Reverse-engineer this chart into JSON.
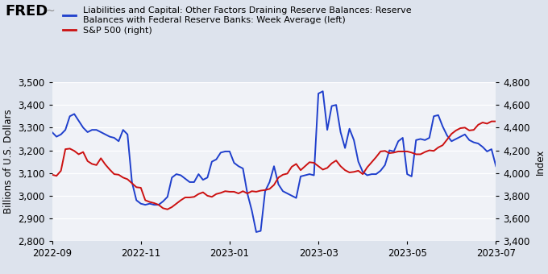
{
  "blue_y": [
    3280,
    3260,
    3270,
    3290,
    3350,
    3360,
    3330,
    3300,
    3280,
    3290,
    3290,
    3280,
    3270,
    3260,
    3255,
    3240,
    3290,
    3270,
    3060,
    2980,
    2965,
    2960,
    2965,
    2960,
    2960,
    2975,
    2995,
    3080,
    3095,
    3090,
    3075,
    3060,
    3060,
    3095,
    3070,
    3080,
    3150,
    3160,
    3190,
    3195,
    3195,
    3145,
    3130,
    3120,
    3010,
    2935,
    2840,
    2845,
    3020,
    3060,
    3130,
    3050,
    3020,
    3010,
    3000,
    2990,
    3085,
    3090,
    3095,
    3090,
    3450,
    3460,
    3290,
    3395,
    3400,
    3280,
    3210,
    3295,
    3245,
    3150,
    3105,
    3090,
    3095,
    3095,
    3110,
    3135,
    3200,
    3195,
    3240,
    3255,
    3095,
    3085,
    3245,
    3250,
    3245,
    3255,
    3350,
    3355,
    3305,
    3265,
    3240,
    3250,
    3260,
    3270,
    3245,
    3235,
    3230,
    3215,
    3195,
    3205,
    3130
  ],
  "red_y": [
    3985,
    3975,
    4020,
    4210,
    4215,
    4195,
    4165,
    4185,
    4105,
    4080,
    4070,
    4130,
    4075,
    4030,
    3990,
    3985,
    3960,
    3945,
    3910,
    3875,
    3870,
    3760,
    3745,
    3735,
    3720,
    3690,
    3680,
    3700,
    3730,
    3760,
    3785,
    3785,
    3790,
    3815,
    3830,
    3800,
    3790,
    3815,
    3825,
    3840,
    3835,
    3835,
    3820,
    3840,
    3820,
    3840,
    3835,
    3845,
    3850,
    3860,
    3895,
    3960,
    3985,
    3995,
    4055,
    4080,
    4025,
    4060,
    4095,
    4090,
    4060,
    4030,
    4045,
    4085,
    4110,
    4060,
    4025,
    4005,
    4010,
    4020,
    3990,
    4050,
    4095,
    4140,
    4190,
    4195,
    4175,
    4180,
    4190,
    4190,
    4190,
    4180,
    4165,
    4165,
    4185,
    4200,
    4195,
    4225,
    4245,
    4295,
    4345,
    4375,
    4395,
    4400,
    4375,
    4380,
    4425,
    4445,
    4435,
    4455,
    4455
  ],
  "n_points": 101,
  "blue_ylim": [
    2800,
    3500
  ],
  "red_ylim": [
    3400,
    4800
  ],
  "blue_yticks": [
    2800,
    2900,
    3000,
    3100,
    3200,
    3300,
    3400,
    3500
  ],
  "red_yticks": [
    3400,
    3600,
    3800,
    4000,
    4200,
    4400,
    4600,
    4800
  ],
  "xtick_positions": [
    0,
    20,
    40,
    60,
    80,
    100
  ],
  "xtick_labels": [
    "2022-09",
    "2022-11",
    "2023-01",
    "2023-03",
    "2023-05",
    "2023-07"
  ],
  "ylabel_left": "Billions of U.S. Dollars",
  "ylabel_right": "Index",
  "blue_color": "#1f3fcc",
  "red_color": "#cc1111",
  "background_color": "#dde3ed",
  "plot_bg_color": "#f0f2f7",
  "legend_blue": "Liabilities and Capital: Other Factors Draining Reserve Balances: Reserve\nBalances with Federal Reserve Banks: Week Average (left)",
  "legend_red": "S&P 500 (right)",
  "grid_color": "#ffffff",
  "font_size_ticks": 8.5,
  "font_size_legend": 8.0,
  "font_size_ylabel": 8.5,
  "line_width": 1.4
}
